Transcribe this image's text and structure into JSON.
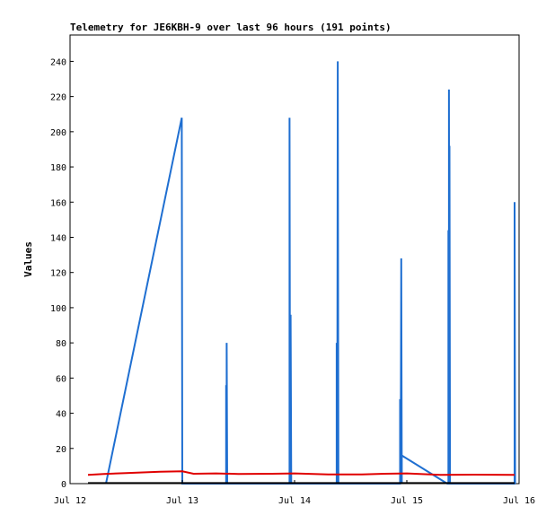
{
  "chart_data": {
    "type": "line",
    "title": "Telemetry for JE6KBH-9 over last 96 hours (191 points)",
    "xlabel": "",
    "ylabel": "Values",
    "ylim": [
      0,
      255
    ],
    "xlim": [
      0.0,
      4.0
    ],
    "yticks": [
      0,
      20,
      40,
      60,
      80,
      100,
      120,
      140,
      160,
      180,
      200,
      220,
      240
    ],
    "xticks": [
      {
        "value": 0.0,
        "label": "Jul 12"
      },
      {
        "value": 1.0,
        "label": "Jul 13"
      },
      {
        "value": 2.0,
        "label": "Jul 14"
      },
      {
        "value": 3.0,
        "label": "Jul 15"
      },
      {
        "value": 4.0,
        "label": "Jul 16"
      }
    ],
    "grid": false,
    "series": [
      {
        "color": "#1f6fd1",
        "points": [
          [
            0.32,
            0
          ],
          [
            0.995,
            208
          ],
          [
            1.0,
            0
          ],
          [
            1.39,
            0
          ],
          [
            1.39,
            56
          ],
          [
            1.395,
            0
          ],
          [
            1.395,
            80
          ],
          [
            1.4,
            0
          ],
          [
            1.955,
            0
          ],
          [
            1.955,
            208
          ],
          [
            1.96,
            0
          ],
          [
            1.965,
            96
          ],
          [
            1.97,
            0
          ],
          [
            2.375,
            0
          ],
          [
            2.375,
            80
          ],
          [
            2.38,
            0
          ],
          [
            2.385,
            240
          ],
          [
            2.39,
            0
          ],
          [
            2.94,
            0
          ],
          [
            2.94,
            48
          ],
          [
            2.945,
            0
          ],
          [
            2.95,
            128
          ],
          [
            2.955,
            0
          ],
          [
            2.955,
            16
          ],
          [
            3.36,
            0
          ],
          [
            3.37,
            0
          ],
          [
            3.37,
            144
          ],
          [
            3.375,
            0
          ],
          [
            3.375,
            224
          ],
          [
            3.38,
            0
          ],
          [
            3.38,
            192
          ],
          [
            3.385,
            0
          ],
          [
            3.96,
            0
          ],
          [
            3.96,
            160
          ],
          [
            3.965,
            0
          ]
        ]
      },
      {
        "color": "#e00000",
        "points": [
          [
            0.16,
            5
          ],
          [
            0.3,
            5.5
          ],
          [
            0.5,
            6
          ],
          [
            0.8,
            6.8
          ],
          [
            1.0,
            7
          ],
          [
            1.1,
            5.6
          ],
          [
            1.3,
            5.8
          ],
          [
            1.5,
            5.5
          ],
          [
            1.8,
            5.6
          ],
          [
            2.0,
            5.8
          ],
          [
            2.3,
            5.2
          ],
          [
            2.6,
            5.2
          ],
          [
            2.8,
            5.6
          ],
          [
            3.0,
            5.8
          ],
          [
            3.3,
            5.0
          ],
          [
            3.6,
            5.1
          ],
          [
            3.96,
            5.0
          ]
        ]
      },
      {
        "color": "#000000",
        "points": [
          [
            0.16,
            0.3
          ],
          [
            3.96,
            0.3
          ]
        ]
      }
    ]
  }
}
